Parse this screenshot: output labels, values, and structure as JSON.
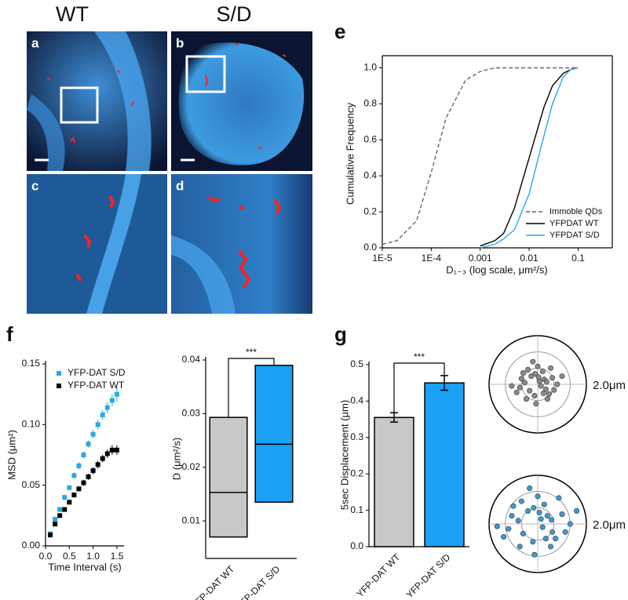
{
  "figure": {
    "column_labels": [
      "WT",
      "S/D"
    ],
    "panel_labels": [
      "a",
      "b",
      "c",
      "d",
      "e",
      "f",
      "g"
    ]
  },
  "chart_data": [
    {
      "type": "line",
      "x_label": "D₁₋₃ (log scale, μm²/s)",
      "y_label": "Cumulative Frequency",
      "xscale": "log",
      "x": [
        1e-05,
        2e-05,
        5e-05,
        0.0001,
        0.0002,
        0.0005,
        0.001,
        0.002,
        0.003,
        0.005,
        0.01,
        0.02,
        0.03,
        0.05,
        0.07,
        0.1
      ],
      "series": [
        {
          "name": "Immoble QDs",
          "color": "#666666",
          "dashed": true,
          "values": [
            0.02,
            0.04,
            0.15,
            0.42,
            0.72,
            0.93,
            0.98,
            1.0,
            1.0,
            1.0,
            1.0,
            1.0,
            1.0,
            1.0,
            1.0,
            1.0
          ]
        },
        {
          "name": "YFPDAT WT",
          "color": "#000000",
          "values": [
            null,
            null,
            null,
            null,
            null,
            null,
            0.01,
            0.04,
            0.08,
            0.22,
            0.5,
            0.78,
            0.9,
            0.97,
            0.99,
            1.0
          ]
        },
        {
          "name": "YFPDAT S/D",
          "color": "#29a9e0",
          "values": [
            null,
            null,
            null,
            null,
            null,
            null,
            0.0,
            0.02,
            0.05,
            0.1,
            0.3,
            0.62,
            0.8,
            0.95,
            0.99,
            1.0
          ]
        }
      ],
      "xlim": [
        1e-05,
        0.5
      ],
      "xticks": [
        {
          "value": 1e-05,
          "label": "1E-5"
        },
        {
          "value": 0.0001,
          "label": "1E-4"
        },
        0.001,
        0.01,
        0.1
      ],
      "ylim": [
        0,
        1.05
      ],
      "yticks": [
        {
          "value": 0,
          "label": "0.0"
        },
        0.2,
        0.4,
        0.6,
        0.8,
        {
          "value": 1,
          "label": "1.0"
        }
      ],
      "legend": "lower-right"
    },
    {
      "type": "scatter",
      "x_label": "Time Interval (s)",
      "y_label": "MSD (μm²)",
      "x": [
        0.1,
        0.2,
        0.3,
        0.4,
        0.5,
        0.6,
        0.7,
        0.8,
        0.9,
        1.0,
        1.1,
        1.2,
        1.3,
        1.4,
        1.5
      ],
      "series": [
        {
          "name": "YFP-DAT S/D",
          "color": "#29a9e0",
          "values": [
            0.01,
            0.022,
            0.03,
            0.04,
            0.048,
            0.058,
            0.066,
            0.075,
            0.084,
            0.092,
            0.1,
            0.108,
            0.114,
            0.12,
            0.125
          ],
          "errors": [
            0.001,
            0.0015,
            0.002,
            0.002,
            0.002,
            0.0025,
            0.003,
            0.003,
            0.003,
            0.0035,
            0.004,
            0.004,
            0.0045,
            0.005,
            0.006
          ]
        },
        {
          "name": "YFP-DAT WT",
          "color": "#000000",
          "values": [
            0.009,
            0.018,
            0.025,
            0.03,
            0.036,
            0.042,
            0.047,
            0.052,
            0.057,
            0.062,
            0.067,
            0.072,
            0.076,
            0.079,
            0.079
          ],
          "errors": [
            0.001,
            0.001,
            0.0015,
            0.0015,
            0.002,
            0.002,
            0.002,
            0.0025,
            0.0025,
            0.003,
            0.003,
            0.003,
            0.0035,
            0.004,
            0.004
          ]
        }
      ],
      "xlim": [
        0,
        1.65
      ],
      "xticks": [
        {
          "value": 0,
          "label": "0.0"
        },
        0.5,
        {
          "value": 1,
          "label": "1.0"
        },
        1.5
      ],
      "ylim": [
        0,
        0.15
      ],
      "yticks": [
        {
          "value": 0,
          "label": "0.00"
        },
        0.05,
        {
          "value": 0.1,
          "label": "0.10"
        },
        0.15
      ],
      "legend": "upper-left"
    },
    {
      "type": "box",
      "y_label": "D (μm²/s)",
      "categories": [
        "YFP-DAT WT",
        "YFP-DAT S/D"
      ],
      "q1": [
        0.007,
        0.0135
      ],
      "median": [
        0.0153,
        0.0243
      ],
      "q3": [
        0.0293,
        0.039
      ],
      "colors": [
        "#c8c8c8",
        "#1aa0f5"
      ],
      "annotation": "***",
      "ylim": [
        0.003,
        0.04
      ],
      "yticks": [
        0.01,
        0.02,
        0.03,
        0.04
      ]
    },
    {
      "type": "bar",
      "y_label": "5sec Displacement (μm)",
      "categories": [
        "YFP-DAT WT",
        "YFP-DAT S/D"
      ],
      "values": [
        0.355,
        0.45
      ],
      "errors": [
        0.013,
        0.02
      ],
      "colors": [
        "#c8c8c8",
        "#1aa0f5"
      ],
      "annotation": "***",
      "ylim": [
        0,
        0.5
      ],
      "yticks": [
        {
          "value": 0,
          "label": "0.0"
        },
        0.1,
        0.2,
        0.3,
        0.4,
        0.5
      ]
    },
    {
      "type": "polar-scatter",
      "ring_label": "2.0μm",
      "color": "#8a8a8a",
      "xlim": [
        -3,
        3
      ],
      "ylim": [
        -3,
        3
      ],
      "x": [
        0.1,
        -0.4,
        0.5,
        -0.8,
        0.3,
        0.9,
        -0.2,
        -1.1,
        0.6,
        0.0,
        -0.5,
        1.2,
        -0.9,
        0.4,
        -0.1,
        0.7,
        -0.6,
        1.5,
        -1.3,
        0.2,
        -0.3,
        0.8,
        -0.7,
        0.05,
        1.0,
        -1.0,
        0.35,
        -0.15,
        0.55,
        -1.6
      ],
      "y": [
        0.2,
        0.5,
        -0.3,
        0.1,
        0.8,
        0.4,
        -0.7,
        -0.2,
        -0.9,
        1.1,
        -0.4,
        0.0,
        0.7,
        0.3,
        -1.2,
        -0.6,
        0.9,
        0.5,
        -0.5,
        -0.1,
        1.4,
        1.0,
        -0.9,
        0.45,
        -0.35,
        0.35,
        -0.55,
        0.65,
        0.15,
        -0.1
      ]
    },
    {
      "type": "polar-scatter",
      "ring_label": "2.0μm",
      "color": "#3b9ad6",
      "xlim": [
        -3,
        3
      ],
      "ylim": [
        -3,
        3
      ],
      "x": [
        0.2,
        -0.6,
        0.9,
        -1.2,
        0.4,
        1.5,
        -0.3,
        -1.8,
        0.8,
        0.0,
        -0.9,
        2.0,
        -1.5,
        0.6,
        -0.2,
        1.1,
        -1.0,
        2.4,
        -2.1,
        0.3,
        -0.5,
        1.3,
        -1.1,
        0.1,
        1.7,
        -1.6,
        0.5,
        -0.25,
        0.85,
        -2.5
      ],
      "y": [
        0.3,
        0.8,
        -0.5,
        0.2,
        1.2,
        0.6,
        -1.1,
        -0.3,
        -1.4,
        1.7,
        -0.6,
        0.0,
        1.1,
        0.5,
        -1.9,
        -0.9,
        1.4,
        0.8,
        -0.8,
        -0.2,
        2.2,
        1.6,
        -1.4,
        0.7,
        -0.5,
        0.5,
        -0.9,
        1.0,
        0.25,
        -0.15
      ]
    }
  ]
}
